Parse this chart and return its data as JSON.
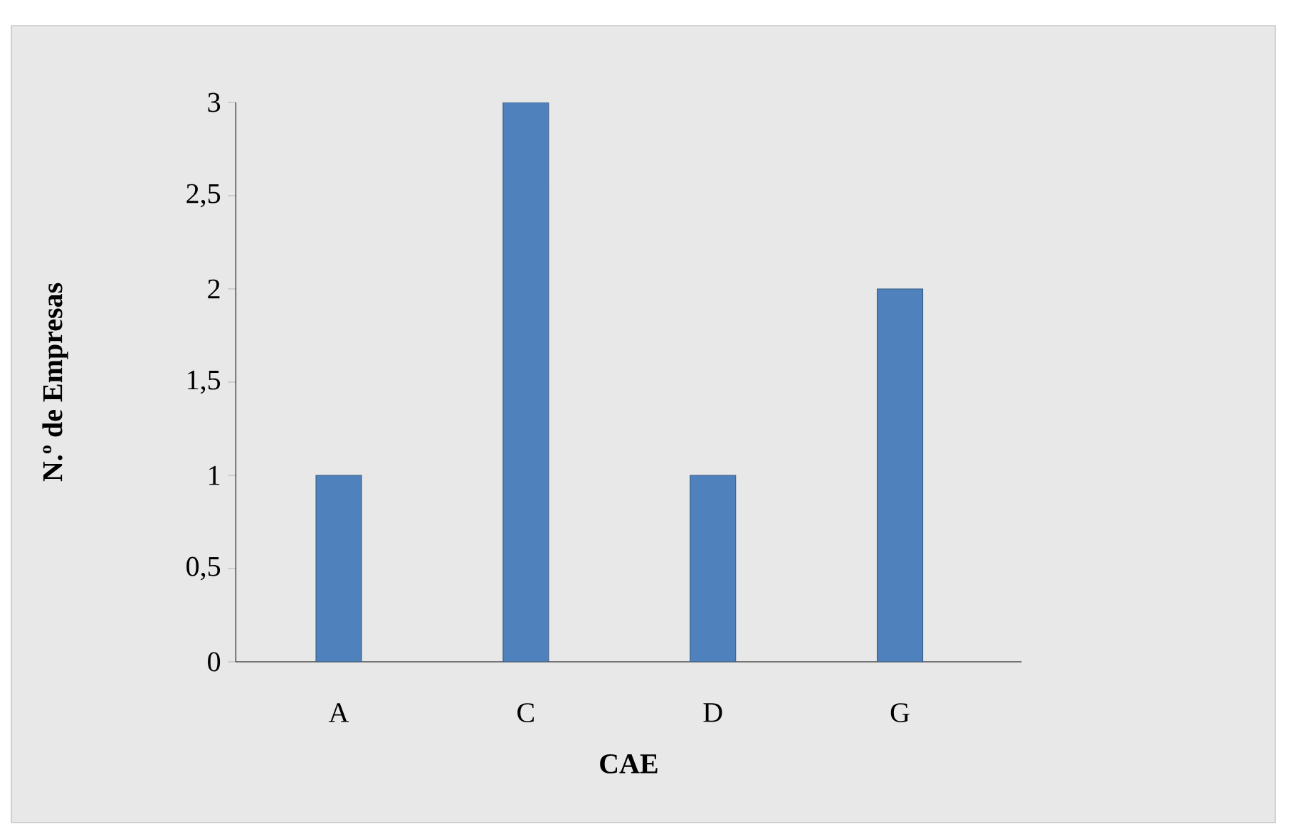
{
  "chart_data": {
    "type": "bar",
    "xlabel": "CAE",
    "ylabel": "N.º  de Empresas",
    "categories": [
      "A",
      "C",
      "D",
      "G"
    ],
    "values": [
      1,
      3,
      1,
      2
    ],
    "color": "#4f81bd",
    "ylim": [
      0,
      3
    ],
    "yticks": [
      {
        "value": 0,
        "label": "0"
      },
      {
        "value": 0.5,
        "label": "0,5"
      },
      {
        "value": 1,
        "label": "1"
      },
      {
        "value": 1.5,
        "label": "1,5"
      },
      {
        "value": 2,
        "label": "2"
      },
      {
        "value": 2.5,
        "label": "2,5"
      },
      {
        "value": 3,
        "label": "3"
      }
    ]
  }
}
